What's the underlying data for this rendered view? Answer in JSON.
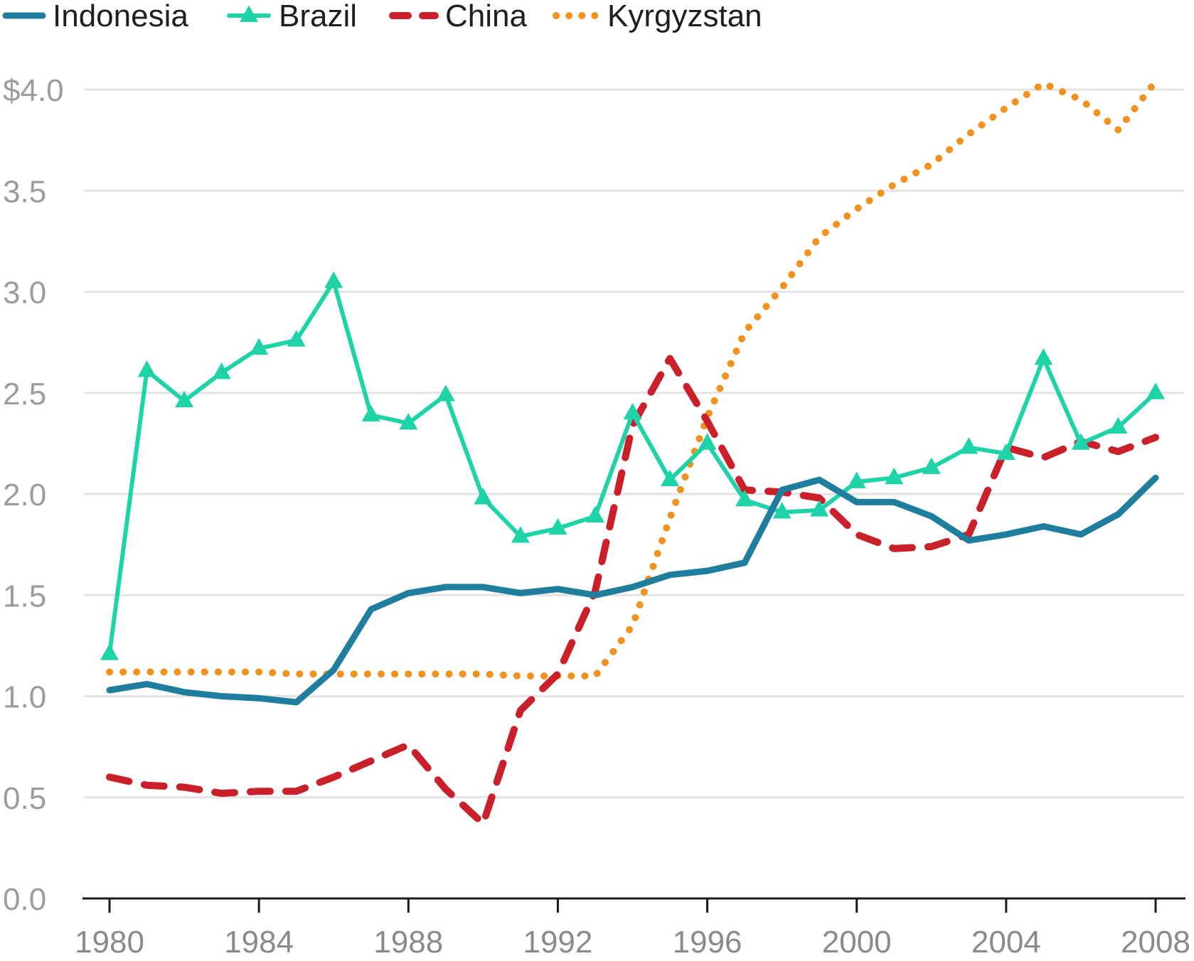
{
  "chart_data": {
    "type": "line",
    "title": "",
    "xlabel": "",
    "ylabel": "",
    "xlim": [
      1980,
      2008
    ],
    "ylim": [
      0,
      4.0
    ],
    "x_ticks": [
      1980,
      1984,
      1988,
      1992,
      1996,
      2000,
      2004,
      2008
    ],
    "x_tick_labels": [
      "1980",
      "1984",
      "1988",
      "1992",
      "1996",
      "2000",
      "2004",
      "2008"
    ],
    "y_ticks": [
      0,
      0.5,
      1.0,
      1.5,
      2.0,
      2.5,
      3.0,
      3.5,
      4.0
    ],
    "y_tick_labels": [
      "0.0",
      "0.5",
      "1.0",
      "1.5",
      "2.0",
      "2.5",
      "3.0",
      "3.5",
      "$4.0"
    ],
    "grid": true,
    "legend_position": "top-left",
    "x": [
      1980,
      1981,
      1982,
      1983,
      1984,
      1985,
      1986,
      1987,
      1988,
      1989,
      1990,
      1991,
      1992,
      1993,
      1994,
      1995,
      1996,
      1997,
      1998,
      1999,
      2000,
      2001,
      2002,
      2003,
      2004,
      2005,
      2006,
      2007,
      2008
    ],
    "series": [
      {
        "name": "Indonesia",
        "color": "#1f7d9e",
        "style": "solid",
        "marker": "none",
        "values": [
          1.03,
          1.06,
          1.02,
          1.0,
          0.99,
          0.97,
          1.13,
          1.43,
          1.51,
          1.54,
          1.54,
          1.51,
          1.53,
          1.5,
          1.54,
          1.6,
          1.62,
          1.66,
          2.02,
          2.07,
          1.96,
          1.96,
          1.89,
          1.77,
          1.8,
          1.84,
          1.8,
          1.9,
          2.08
        ]
      },
      {
        "name": "Brazil",
        "color": "#1fd3a8",
        "style": "solid",
        "marker": "triangle",
        "values": [
          1.21,
          2.61,
          2.46,
          2.6,
          2.72,
          2.76,
          3.05,
          2.39,
          2.35,
          2.49,
          1.98,
          1.79,
          1.83,
          1.89,
          2.4,
          2.07,
          2.25,
          1.97,
          1.91,
          1.92,
          2.06,
          2.08,
          2.13,
          2.23,
          2.2,
          2.67,
          2.25,
          2.33,
          2.5
        ]
      },
      {
        "name": "China",
        "color": "#c9202a",
        "style": "dashed",
        "marker": "none",
        "values": [
          0.6,
          0.56,
          0.55,
          0.52,
          0.53,
          0.53,
          0.6,
          0.68,
          0.76,
          0.54,
          0.37,
          0.93,
          1.11,
          1.52,
          2.34,
          2.67,
          2.36,
          2.02,
          2.01,
          1.98,
          1.8,
          1.73,
          1.74,
          1.8,
          2.23,
          2.18,
          2.26,
          2.21,
          2.28
        ]
      },
      {
        "name": "Kyrgyzstan",
        "color": "#f0921e",
        "style": "dotted",
        "marker": "none",
        "values": [
          1.12,
          1.12,
          1.12,
          1.12,
          1.12,
          1.11,
          1.11,
          1.11,
          1.11,
          1.11,
          1.11,
          1.1,
          1.1,
          1.1,
          1.35,
          1.88,
          2.38,
          2.8,
          3.02,
          3.27,
          3.41,
          3.53,
          3.63,
          3.78,
          3.91,
          4.03,
          3.95,
          3.8,
          4.04
        ]
      }
    ]
  }
}
